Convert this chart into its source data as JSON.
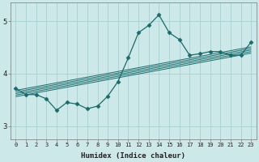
{
  "xlabel": "Humidex (Indice chaleur)",
  "bg_color": "#cce8e8",
  "line_color": "#1a6b6b",
  "grid_color": "#aad4d4",
  "x": [
    0,
    1,
    2,
    3,
    4,
    5,
    6,
    7,
    8,
    9,
    10,
    11,
    12,
    13,
    14,
    15,
    16,
    17,
    18,
    19,
    20,
    21,
    22,
    23
  ],
  "y_main": [
    3.72,
    3.6,
    3.6,
    3.52,
    3.3,
    3.45,
    3.42,
    3.33,
    3.38,
    3.57,
    3.85,
    4.3,
    4.78,
    4.92,
    5.12,
    4.78,
    4.65,
    4.35,
    4.38,
    4.42,
    4.42,
    4.35,
    4.35,
    4.6
  ],
  "band_offsets": [
    -0.06,
    -0.03,
    0.0,
    0.03,
    0.06
  ],
  "band_x_start": 0,
  "band_x_end": 23,
  "band_y_start": 3.62,
  "band_y_end": 4.45,
  "ylim": [
    2.75,
    5.35
  ],
  "yticks": [
    3,
    4,
    5
  ],
  "xlim": [
    -0.5,
    23.5
  ],
  "marker": "D",
  "marker_size": 2.5,
  "linewidth": 0.9,
  "band_linewidth": 0.7
}
